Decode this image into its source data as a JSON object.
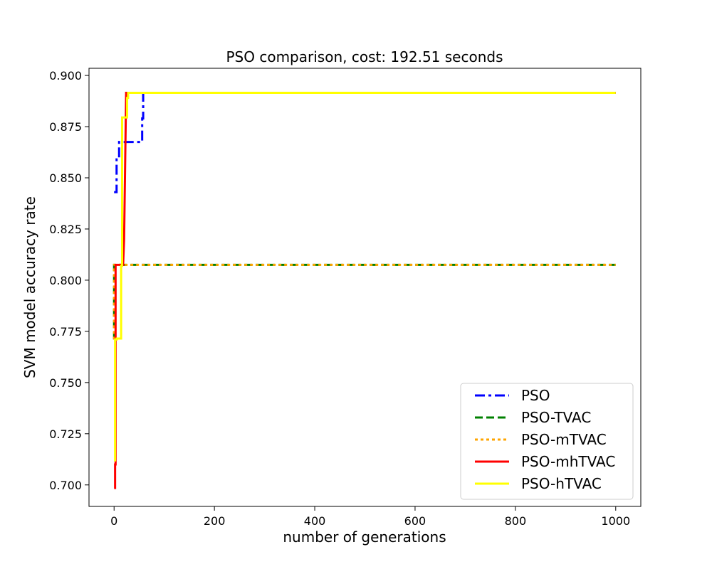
{
  "chart_data": {
    "type": "line",
    "title": "PSO comparison, cost: 192.51 seconds",
    "xlabel": "number of generations",
    "ylabel": "SVM model accuracy rate",
    "xlim": [
      -50,
      1050
    ],
    "ylim": [
      0.6895,
      0.9035
    ],
    "xticks": [
      0,
      200,
      400,
      600,
      800,
      1000
    ],
    "yticks": [
      0.7,
      0.725,
      0.75,
      0.775,
      0.8,
      0.825,
      0.85,
      0.875,
      0.9
    ],
    "ytick_format": 3,
    "grid": false,
    "legend_position": "lower-right",
    "series": [
      {
        "name": "PSO",
        "color": "#0000ff",
        "dash": "dashdot",
        "x": [
          0,
          5,
          5,
          10,
          10,
          52,
          52,
          56,
          56,
          58,
          58,
          1000
        ],
        "y": [
          0.843,
          0.843,
          0.859,
          0.859,
          0.8675,
          0.8675,
          0.8675,
          0.8675,
          0.879,
          0.879,
          0.8915,
          0.8915
        ]
      },
      {
        "name": "PSO-TVAC",
        "color": "#008000",
        "dash": "dashed",
        "x": [
          0,
          0,
          1000
        ],
        "y": [
          0.771,
          0.8075,
          0.8075
        ]
      },
      {
        "name": "PSO-mTVAC",
        "color": "#ffa500",
        "dash": "dotted",
        "x": [
          0,
          0,
          1000
        ],
        "y": [
          0.771,
          0.8075,
          0.8075
        ]
      },
      {
        "name": "PSO-mhTVAC",
        "color": "#ff0000",
        "dash": "solid",
        "x": [
          0,
          2,
          2,
          3,
          3,
          6,
          6,
          18,
          18,
          20,
          24,
          24,
          1000
        ],
        "y": [
          0.6985,
          0.6985,
          0.71,
          0.71,
          0.8075,
          0.8075,
          0.8075,
          0.8075,
          0.8075,
          0.82,
          0.8915,
          0.8915,
          0.8915
        ]
      },
      {
        "name": "PSO-hTVAC",
        "color": "#ffff00",
        "dash": "solid",
        "x": [
          0,
          2,
          2,
          5,
          5,
          14,
          14,
          16,
          16,
          26,
          26,
          28,
          28,
          1000
        ],
        "y": [
          0.712,
          0.712,
          0.771,
          0.771,
          0.7715,
          0.7715,
          0.807,
          0.807,
          0.8795,
          0.8795,
          0.889,
          0.889,
          0.8915,
          0.8915
        ]
      }
    ]
  }
}
